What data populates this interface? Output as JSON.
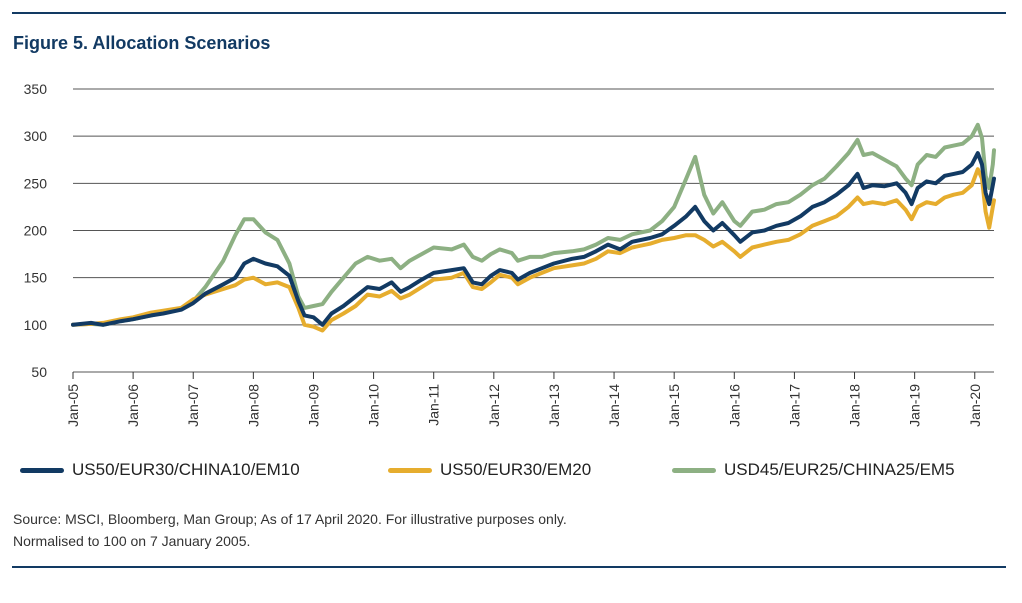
{
  "figure": {
    "title": "Figure 5. Allocation Scenarios"
  },
  "chart_data": {
    "type": "line",
    "title": "Figure 5. Allocation Scenarios",
    "xlabel": "",
    "ylabel": "",
    "ylim": [
      50,
      350
    ],
    "yticks": [
      50,
      100,
      150,
      200,
      250,
      300,
      350
    ],
    "grid": "horizontal",
    "x_tick_labels": [
      "Jan-05",
      "Jan-06",
      "Jan-07",
      "Jan-08",
      "Jan-09",
      "Jan-10",
      "Jan-11",
      "Jan-12",
      "Jan-13",
      "Jan-14",
      "Jan-15",
      "Jan-16",
      "Jan-17",
      "Jan-18",
      "Jan-19",
      "Jan-20"
    ],
    "x_range": [
      2005.0,
      2020.32
    ],
    "series": [
      {
        "name": "US50/EUR30/CHINA10/EM10",
        "color": "#123a63",
        "points": [
          [
            2005.0,
            100
          ],
          [
            2005.3,
            102
          ],
          [
            2005.5,
            100
          ],
          [
            2005.8,
            104
          ],
          [
            2006.0,
            106
          ],
          [
            2006.3,
            110
          ],
          [
            2006.5,
            112
          ],
          [
            2006.8,
            116
          ],
          [
            2007.0,
            123
          ],
          [
            2007.2,
            133
          ],
          [
            2007.5,
            143
          ],
          [
            2007.7,
            150
          ],
          [
            2007.85,
            165
          ],
          [
            2008.0,
            170
          ],
          [
            2008.2,
            165
          ],
          [
            2008.4,
            162
          ],
          [
            2008.6,
            152
          ],
          [
            2008.75,
            125
          ],
          [
            2008.85,
            110
          ],
          [
            2009.0,
            108
          ],
          [
            2009.15,
            100
          ],
          [
            2009.3,
            112
          ],
          [
            2009.5,
            120
          ],
          [
            2009.7,
            130
          ],
          [
            2009.9,
            140
          ],
          [
            2010.1,
            138
          ],
          [
            2010.3,
            145
          ],
          [
            2010.45,
            135
          ],
          [
            2010.6,
            140
          ],
          [
            2010.8,
            148
          ],
          [
            2011.0,
            155
          ],
          [
            2011.3,
            158
          ],
          [
            2011.5,
            160
          ],
          [
            2011.65,
            145
          ],
          [
            2011.8,
            143
          ],
          [
            2011.95,
            152
          ],
          [
            2012.1,
            158
          ],
          [
            2012.3,
            155
          ],
          [
            2012.4,
            148
          ],
          [
            2012.6,
            155
          ],
          [
            2012.8,
            160
          ],
          [
            2013.0,
            165
          ],
          [
            2013.3,
            170
          ],
          [
            2013.5,
            172
          ],
          [
            2013.7,
            178
          ],
          [
            2013.9,
            185
          ],
          [
            2014.1,
            180
          ],
          [
            2014.3,
            188
          ],
          [
            2014.6,
            192
          ],
          [
            2014.8,
            196
          ],
          [
            2015.0,
            205
          ],
          [
            2015.2,
            215
          ],
          [
            2015.35,
            225
          ],
          [
            2015.5,
            210
          ],
          [
            2015.65,
            200
          ],
          [
            2015.8,
            208
          ],
          [
            2016.0,
            195
          ],
          [
            2016.1,
            188
          ],
          [
            2016.3,
            198
          ],
          [
            2016.5,
            200
          ],
          [
            2016.7,
            205
          ],
          [
            2016.9,
            208
          ],
          [
            2017.1,
            215
          ],
          [
            2017.3,
            225
          ],
          [
            2017.5,
            230
          ],
          [
            2017.7,
            238
          ],
          [
            2017.9,
            248
          ],
          [
            2018.05,
            260
          ],
          [
            2018.15,
            245
          ],
          [
            2018.3,
            248
          ],
          [
            2018.5,
            247
          ],
          [
            2018.7,
            250
          ],
          [
            2018.85,
            240
          ],
          [
            2018.95,
            228
          ],
          [
            2019.05,
            245
          ],
          [
            2019.2,
            252
          ],
          [
            2019.35,
            250
          ],
          [
            2019.5,
            258
          ],
          [
            2019.65,
            260
          ],
          [
            2019.8,
            262
          ],
          [
            2019.95,
            270
          ],
          [
            2020.05,
            282
          ],
          [
            2020.12,
            270
          ],
          [
            2020.18,
            240
          ],
          [
            2020.24,
            228
          ],
          [
            2020.3,
            248
          ],
          [
            2020.32,
            255
          ]
        ]
      },
      {
        "name": "US50/EUR30/EM20",
        "color": "#e6ad2e",
        "points": [
          [
            2005.0,
            100
          ],
          [
            2005.3,
            101
          ],
          [
            2005.5,
            102
          ],
          [
            2005.8,
            106
          ],
          [
            2006.0,
            108
          ],
          [
            2006.3,
            113
          ],
          [
            2006.5,
            115
          ],
          [
            2006.8,
            118
          ],
          [
            2007.0,
            127
          ],
          [
            2007.2,
            132
          ],
          [
            2007.5,
            138
          ],
          [
            2007.7,
            142
          ],
          [
            2007.85,
            148
          ],
          [
            2008.0,
            150
          ],
          [
            2008.2,
            143
          ],
          [
            2008.4,
            145
          ],
          [
            2008.6,
            140
          ],
          [
            2008.75,
            118
          ],
          [
            2008.85,
            100
          ],
          [
            2009.0,
            98
          ],
          [
            2009.15,
            94
          ],
          [
            2009.3,
            105
          ],
          [
            2009.5,
            112
          ],
          [
            2009.7,
            120
          ],
          [
            2009.9,
            132
          ],
          [
            2010.1,
            130
          ],
          [
            2010.3,
            136
          ],
          [
            2010.45,
            128
          ],
          [
            2010.6,
            132
          ],
          [
            2010.8,
            140
          ],
          [
            2011.0,
            148
          ],
          [
            2011.3,
            150
          ],
          [
            2011.5,
            155
          ],
          [
            2011.65,
            140
          ],
          [
            2011.8,
            138
          ],
          [
            2011.95,
            145
          ],
          [
            2012.1,
            153
          ],
          [
            2012.3,
            150
          ],
          [
            2012.4,
            143
          ],
          [
            2012.6,
            150
          ],
          [
            2012.8,
            155
          ],
          [
            2013.0,
            160
          ],
          [
            2013.3,
            163
          ],
          [
            2013.5,
            165
          ],
          [
            2013.7,
            170
          ],
          [
            2013.9,
            178
          ],
          [
            2014.1,
            176
          ],
          [
            2014.3,
            182
          ],
          [
            2014.6,
            186
          ],
          [
            2014.8,
            190
          ],
          [
            2015.0,
            192
          ],
          [
            2015.2,
            195
          ],
          [
            2015.35,
            195
          ],
          [
            2015.5,
            190
          ],
          [
            2015.65,
            183
          ],
          [
            2015.8,
            188
          ],
          [
            2016.0,
            178
          ],
          [
            2016.1,
            172
          ],
          [
            2016.3,
            182
          ],
          [
            2016.5,
            185
          ],
          [
            2016.7,
            188
          ],
          [
            2016.9,
            190
          ],
          [
            2017.1,
            196
          ],
          [
            2017.3,
            205
          ],
          [
            2017.5,
            210
          ],
          [
            2017.7,
            215
          ],
          [
            2017.9,
            225
          ],
          [
            2018.05,
            235
          ],
          [
            2018.15,
            228
          ],
          [
            2018.3,
            230
          ],
          [
            2018.5,
            228
          ],
          [
            2018.7,
            232
          ],
          [
            2018.85,
            222
          ],
          [
            2018.95,
            212
          ],
          [
            2019.05,
            225
          ],
          [
            2019.2,
            230
          ],
          [
            2019.35,
            228
          ],
          [
            2019.5,
            235
          ],
          [
            2019.65,
            238
          ],
          [
            2019.8,
            240
          ],
          [
            2019.95,
            248
          ],
          [
            2020.05,
            265
          ],
          [
            2020.12,
            255
          ],
          [
            2020.18,
            220
          ],
          [
            2020.24,
            203
          ],
          [
            2020.3,
            225
          ],
          [
            2020.32,
            232
          ]
        ]
      },
      {
        "name": "USD45/EUR25/CHINA25/EM5",
        "color": "#8db083",
        "points": [
          [
            2005.0,
            100
          ],
          [
            2005.3,
            101
          ],
          [
            2005.5,
            100
          ],
          [
            2005.8,
            104
          ],
          [
            2006.0,
            106
          ],
          [
            2006.3,
            110
          ],
          [
            2006.5,
            113
          ],
          [
            2006.8,
            117
          ],
          [
            2007.0,
            125
          ],
          [
            2007.2,
            140
          ],
          [
            2007.5,
            168
          ],
          [
            2007.7,
            195
          ],
          [
            2007.85,
            212
          ],
          [
            2008.0,
            212
          ],
          [
            2008.2,
            198
          ],
          [
            2008.4,
            190
          ],
          [
            2008.6,
            165
          ],
          [
            2008.75,
            130
          ],
          [
            2008.85,
            118
          ],
          [
            2009.0,
            120
          ],
          [
            2009.15,
            122
          ],
          [
            2009.3,
            135
          ],
          [
            2009.5,
            150
          ],
          [
            2009.7,
            165
          ],
          [
            2009.9,
            172
          ],
          [
            2010.1,
            168
          ],
          [
            2010.3,
            170
          ],
          [
            2010.45,
            160
          ],
          [
            2010.6,
            168
          ],
          [
            2010.8,
            175
          ],
          [
            2011.0,
            182
          ],
          [
            2011.3,
            180
          ],
          [
            2011.5,
            185
          ],
          [
            2011.65,
            172
          ],
          [
            2011.8,
            168
          ],
          [
            2011.95,
            175
          ],
          [
            2012.1,
            180
          ],
          [
            2012.3,
            176
          ],
          [
            2012.4,
            168
          ],
          [
            2012.6,
            172
          ],
          [
            2012.8,
            172
          ],
          [
            2013.0,
            176
          ],
          [
            2013.3,
            178
          ],
          [
            2013.5,
            180
          ],
          [
            2013.7,
            185
          ],
          [
            2013.9,
            192
          ],
          [
            2014.1,
            190
          ],
          [
            2014.3,
            196
          ],
          [
            2014.6,
            200
          ],
          [
            2014.8,
            210
          ],
          [
            2015.0,
            225
          ],
          [
            2015.2,
            255
          ],
          [
            2015.35,
            278
          ],
          [
            2015.5,
            238
          ],
          [
            2015.65,
            218
          ],
          [
            2015.8,
            230
          ],
          [
            2016.0,
            210
          ],
          [
            2016.1,
            205
          ],
          [
            2016.3,
            220
          ],
          [
            2016.5,
            222
          ],
          [
            2016.7,
            228
          ],
          [
            2016.9,
            230
          ],
          [
            2017.1,
            238
          ],
          [
            2017.3,
            248
          ],
          [
            2017.5,
            255
          ],
          [
            2017.7,
            268
          ],
          [
            2017.9,
            282
          ],
          [
            2018.05,
            296
          ],
          [
            2018.15,
            280
          ],
          [
            2018.3,
            282
          ],
          [
            2018.5,
            275
          ],
          [
            2018.7,
            268
          ],
          [
            2018.85,
            255
          ],
          [
            2018.95,
            248
          ],
          [
            2019.05,
            270
          ],
          [
            2019.2,
            280
          ],
          [
            2019.35,
            278
          ],
          [
            2019.5,
            288
          ],
          [
            2019.65,
            290
          ],
          [
            2019.8,
            292
          ],
          [
            2019.95,
            300
          ],
          [
            2020.05,
            312
          ],
          [
            2020.12,
            298
          ],
          [
            2020.18,
            258
          ],
          [
            2020.24,
            245
          ],
          [
            2020.3,
            270
          ],
          [
            2020.32,
            285
          ]
        ]
      }
    ]
  },
  "source": {
    "line1": "Source: MSCI, Bloomberg, Man Group; As of 17 April 2020. For illustrative purposes only.",
    "line2": "Normalised to 100 on 7 January 2005."
  }
}
